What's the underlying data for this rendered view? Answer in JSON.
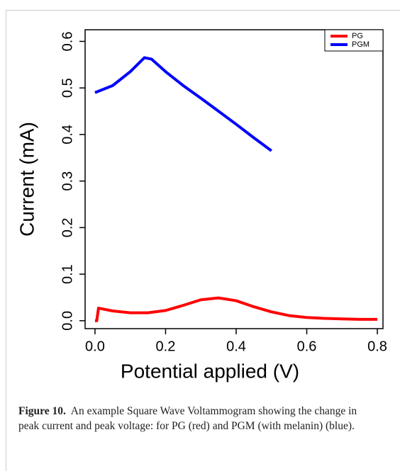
{
  "chart_data": {
    "type": "line",
    "xlabel": "Potential applied (V)",
    "ylabel": "Current (mA)",
    "xlim": [
      -0.028,
      0.816
    ],
    "ylim": [
      -0.017,
      0.625
    ],
    "xticks": [
      {
        "value": 0,
        "label": "0.0"
      },
      0.2,
      0.4,
      0.6,
      0.8
    ],
    "yticks": [
      {
        "value": 0,
        "label": "0.0"
      },
      0.1,
      0.2,
      0.3,
      0.4,
      0.5,
      0.6
    ],
    "legend": "upper right",
    "series": [
      {
        "name": "PG",
        "color": "#ff0000",
        "x": [
          0,
          0.005,
          0.01,
          0.05,
          0.1,
          0.15,
          0.2,
          0.25,
          0.3,
          0.35,
          0.4,
          0.45,
          0.5,
          0.55,
          0.6,
          0.65,
          0.7,
          0.75,
          0.8
        ],
        "values": [
          0,
          0,
          0.027,
          0.021,
          0.017,
          0.017,
          0.022,
          0.033,
          0.045,
          0.049,
          0.043,
          0.03,
          0.019,
          0.011,
          0.007,
          0.005,
          0.004,
          0.003,
          0.003
        ]
      },
      {
        "name": "PGM",
        "color": "#0000ff",
        "x": [
          0,
          0.05,
          0.1,
          0.14,
          0.16,
          0.2,
          0.25,
          0.3,
          0.35,
          0.4,
          0.45,
          0.5
        ],
        "values": [
          0.49,
          0.505,
          0.535,
          0.565,
          0.562,
          0.535,
          0.505,
          0.478,
          0.45,
          0.422,
          0.393,
          0.365
        ]
      }
    ]
  },
  "caption": {
    "label": "Figure 10.",
    "text": "An example Square Wave Voltammogram showing the change in peak current and peak voltage: for PG (red) and PGM (with melanin) (blue)."
  }
}
